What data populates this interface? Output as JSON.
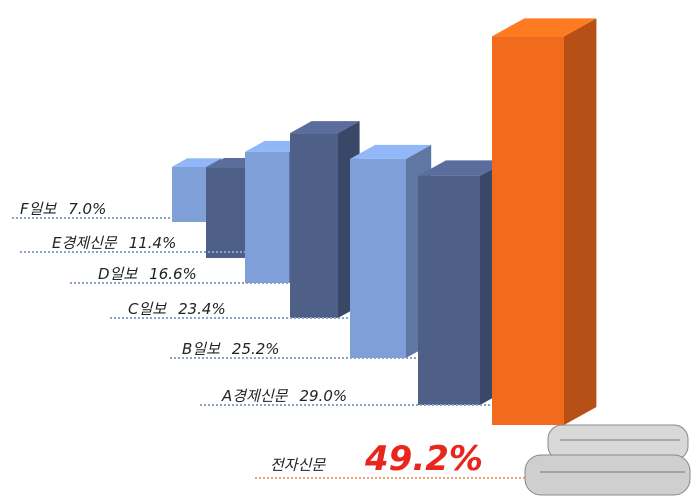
{
  "chart_data": {
    "type": "bar3d",
    "categories": [
      "F일보",
      "E경제신문",
      "D일보",
      "C일보",
      "B일보",
      "A경제신문",
      "전자신문"
    ],
    "values": [
      7.0,
      11.4,
      16.6,
      23.4,
      25.2,
      29.0,
      49.2
    ],
    "value_labels": [
      "7.0%",
      "11.4%",
      "16.6%",
      "23.4%",
      "25.2%",
      "29.0%",
      "49.2%"
    ],
    "colors": [
      "#7f9fd8",
      "#4e5f88",
      "#7f9fd8",
      "#4e5f88",
      "#7f9fd8",
      "#4e5f88",
      "#f26b1d"
    ]
  }
}
